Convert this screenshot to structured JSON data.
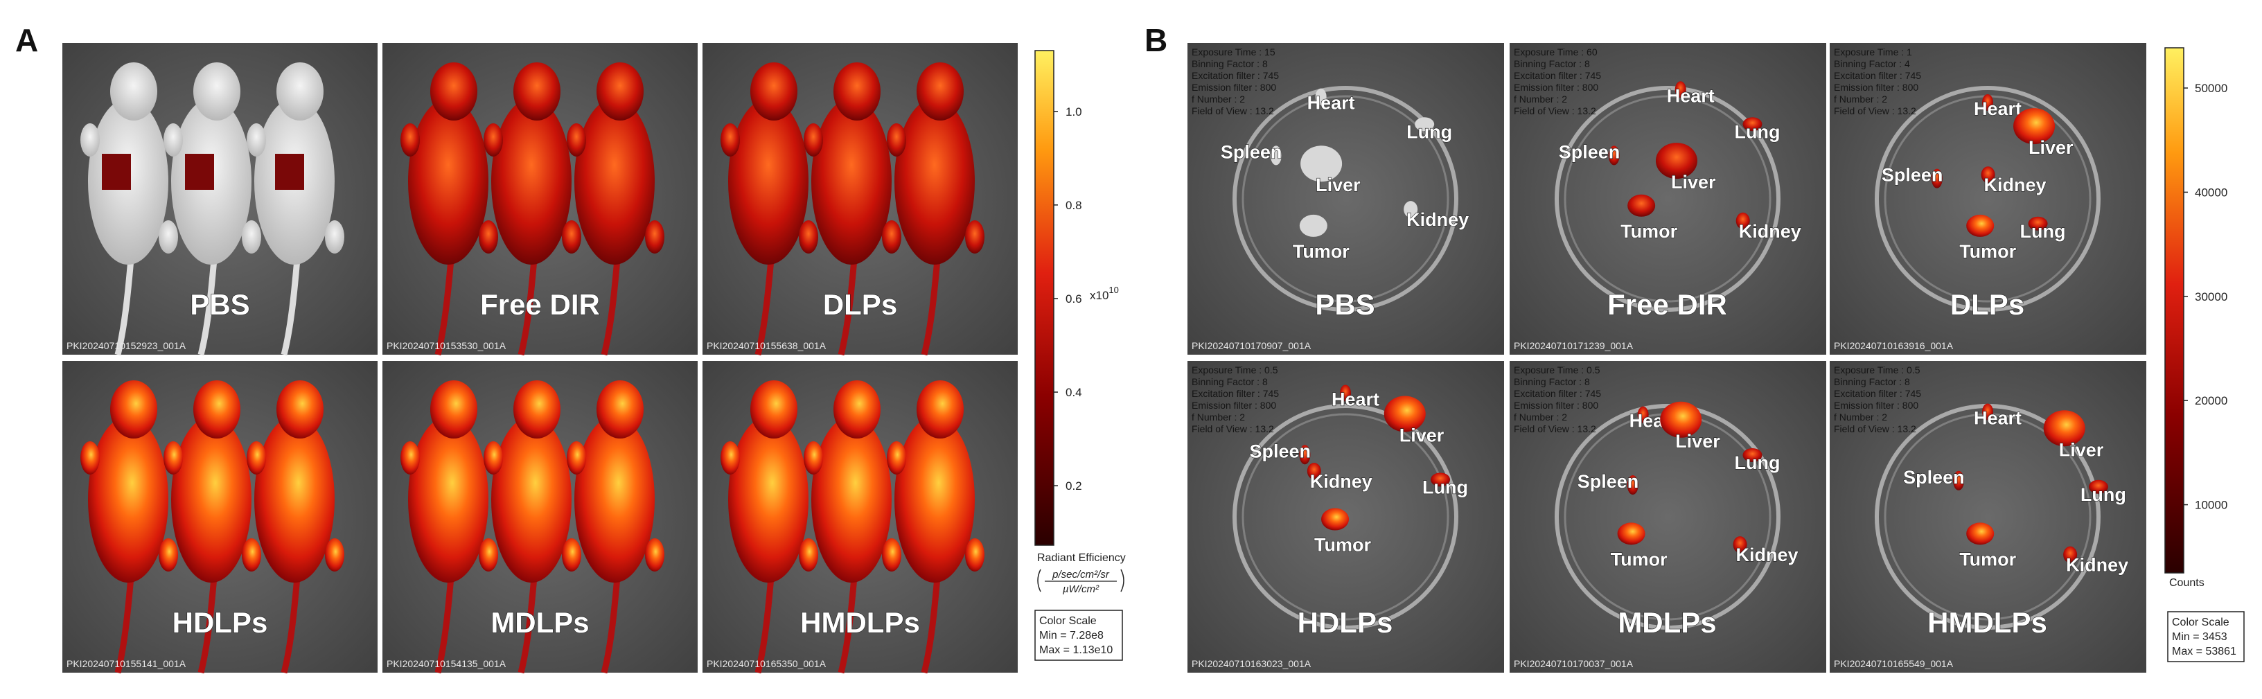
{
  "panel_a": {
    "label": "A",
    "images": [
      {
        "title": "PBS",
        "file_id": "PKI20240710152923_001A"
      },
      {
        "title": "Free DIR",
        "file_id": "PKI20240710153530_001A"
      },
      {
        "title": "DLPs",
        "file_id": "PKI20240710155638_001A"
      },
      {
        "title": "HDLPs",
        "file_id": "PKI20240710155141_001A"
      },
      {
        "title": "MDLPs",
        "file_id": "PKI20240710154135_001A"
      },
      {
        "title": "HMDLPs",
        "file_id": "PKI20240710165350_001A"
      }
    ],
    "colorbar": {
      "lim": [
        0.0728,
        1.13
      ],
      "ticks": [
        {
          "value": 1,
          "label": "1.0"
        },
        0.8,
        0.6,
        0.4,
        0.2
      ],
      "exponent_base": "x10",
      "exponent": "10",
      "title": "Radiant Efficiency",
      "unit_numerator": "p/sec/cm²/sr",
      "unit_denominator": "µW/cm²"
    },
    "color_scale": {
      "title": "Color Scale",
      "min": "Min = 7.28e8",
      "max": "Max = 1.13e10"
    }
  },
  "panel_b": {
    "label": "B",
    "images": [
      {
        "title": "PBS",
        "file_id": "PKI20240710170907_001A",
        "info": [
          "Exposure Time : 15",
          "Binning Factor : 8",
          "Excitation filter : 745",
          "Emission filter : 800",
          "f Number : 2",
          "Field of View : 13.2"
        ],
        "organs": [
          "Heart",
          "Lung",
          "Spleen",
          "Liver",
          "Kidney",
          "Tumor"
        ]
      },
      {
        "title": "Free DIR",
        "file_id": "PKI20240710171239_001A",
        "info": [
          "Exposure Time : 60",
          "Binning Factor : 8",
          "Excitation filter : 745",
          "Emission filter : 800",
          "f Number : 2",
          "Field of View : 13.2"
        ],
        "organs": [
          "Heart",
          "Lung",
          "Spleen",
          "Liver",
          "Tumor",
          "Kidney"
        ]
      },
      {
        "title": "DLPs",
        "file_id": "PKI20240710163916_001A",
        "info": [
          "Exposure Time : 1",
          "Binning Factor : 4",
          "Excitation filter : 745",
          "Emission filter : 800",
          "f Number : 2",
          "Field of View : 13.2"
        ],
        "organs": [
          "Heart",
          "Liver",
          "Spleen",
          "Kidney",
          "Tumor",
          "Lung"
        ]
      },
      {
        "title": "HDLPs",
        "file_id": "PKI20240710163023_001A",
        "info": [
          "Exposure Time : 0.5",
          "Binning Factor : 8",
          "Excitation filter : 745",
          "Emission filter : 800",
          "f Number : 2",
          "Field of View : 13.2"
        ],
        "organs": [
          "Heart",
          "Liver",
          "Spleen",
          "Kidney",
          "Lung",
          "Tumor"
        ]
      },
      {
        "title": "MDLPs",
        "file_id": "PKI20240710170037_001A",
        "info": [
          "Exposure Time : 0.5",
          "Binning Factor : 8",
          "Excitation filter : 745",
          "Emission filter : 800",
          "f Number : 2",
          "Field of View : 13.2"
        ],
        "organs": [
          "Heart",
          "Liver",
          "Lung",
          "Spleen",
          "Tumor",
          "Kidney"
        ]
      },
      {
        "title": "HMDLPs",
        "file_id": "PKI20240710165549_001A",
        "info": [
          "Exposure Time : 0.5",
          "Binning Factor : 8",
          "Excitation filter : 745",
          "Emission filter : 800",
          "f Number : 2",
          "Field of View : 13.2"
        ],
        "organs": [
          "Heart",
          "Liver",
          "Spleen",
          "Lung",
          "Tumor",
          "Kidney"
        ]
      }
    ],
    "colorbar": {
      "lim": [
        3453,
        53861
      ],
      "ticks": [
        50000,
        40000,
        30000,
        20000,
        10000
      ],
      "title": "Counts"
    },
    "color_scale": {
      "title": "Color Scale",
      "min": "Min = 3453",
      "max": "Max = 53861"
    }
  }
}
